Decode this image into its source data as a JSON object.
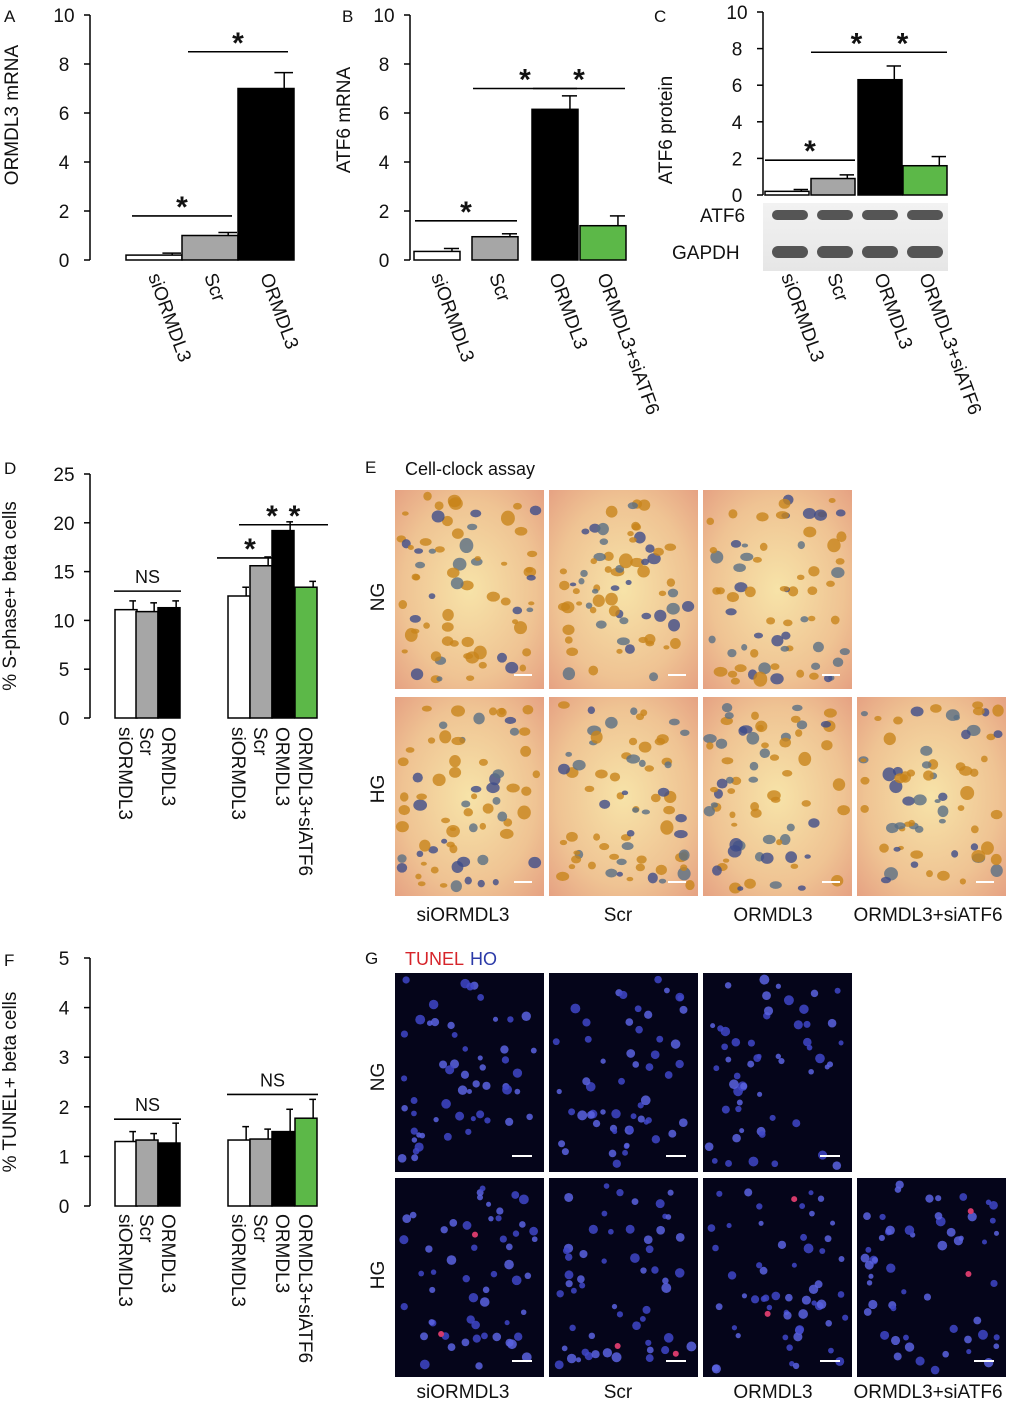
{
  "colors": {
    "white": "#ffffff",
    "gray": "#a6a6a6",
    "black": "#000000",
    "green": "#5cb848"
  },
  "chart_data": [
    {
      "id": "A",
      "type": "bar",
      "letter": "A",
      "ylabel": "ORMDL3 mRNA",
      "ylim": [
        0,
        10
      ],
      "yticks": [
        "0",
        "2",
        "4",
        "6",
        "8",
        "10"
      ],
      "categories": [
        "siORMDL3",
        "Scr",
        "ORMDL3"
      ],
      "values": [
        0.2,
        1.0,
        7.0
      ],
      "errors": [
        0.08,
        0.12,
        0.65
      ],
      "fills": [
        "white",
        "gray",
        "black"
      ],
      "annotations": [
        {
          "type": "star",
          "text": "*",
          "from": 0,
          "to": 1,
          "y": 1.8
        },
        {
          "type": "star",
          "text": "*",
          "from": 1,
          "to": 2,
          "y": 8.5
        }
      ]
    },
    {
      "id": "B",
      "type": "bar",
      "letter": "B",
      "ylabel": "ATF6 mRNA",
      "ylim": [
        0,
        10
      ],
      "yticks": [
        "0",
        "2",
        "4",
        "6",
        "8",
        "10"
      ],
      "categories": [
        "siORMDL3",
        "Scr",
        "ORMDL3",
        "ORMDL3+siATF6"
      ],
      "values": [
        0.35,
        0.95,
        6.15,
        1.4
      ],
      "errors": [
        0.12,
        0.12,
        0.55,
        0.4
      ],
      "fills": [
        "white",
        "gray",
        "black",
        "green"
      ],
      "annotations": [
        {
          "type": "star",
          "text": "*",
          "from": 0,
          "to": 1,
          "y": 1.6
        },
        {
          "type": "star",
          "text": "*",
          "from": 1,
          "to": 2,
          "y": 7.0
        },
        {
          "type": "star",
          "text": "*",
          "from": 2,
          "to": 3,
          "y": 7.0
        }
      ]
    },
    {
      "id": "C",
      "type": "bar",
      "letter": "C",
      "ylabel": "ATF6 protein",
      "ylim": [
        0,
        10
      ],
      "yticks": [
        "0",
        "2",
        "4",
        "6",
        "8",
        "10"
      ],
      "categories": [
        "siORMDL3",
        "Scr",
        "ORMDL3",
        "ORMDL3+siATF6"
      ],
      "values": [
        0.2,
        0.9,
        6.3,
        1.6
      ],
      "errors": [
        0.1,
        0.2,
        0.75,
        0.5
      ],
      "fills": [
        "white",
        "gray",
        "black",
        "green"
      ],
      "annotations": [
        {
          "type": "star",
          "text": "*",
          "from": 0,
          "to": 1,
          "y": 1.9
        },
        {
          "type": "star",
          "text": "*",
          "from": 1,
          "to": 2,
          "y": 7.8
        },
        {
          "type": "star",
          "text": "*",
          "from": 2,
          "to": 3,
          "y": 7.8
        }
      ],
      "blot_labels": [
        "ATF6",
        "GAPDH"
      ]
    },
    {
      "id": "D",
      "type": "bar",
      "letter": "D",
      "ylabel": "% S-phase+ beta cells",
      "ylim": [
        0,
        25
      ],
      "yticks": [
        "0",
        "5",
        "10",
        "15",
        "20",
        "25"
      ],
      "groups": [
        {
          "categories": [
            "siORMDL3",
            "Scr",
            "ORMDL3"
          ],
          "values": [
            11.1,
            10.9,
            11.3
          ],
          "errors": [
            0.9,
            0.9,
            0.7
          ],
          "fills": [
            "white",
            "gray",
            "black"
          ]
        },
        {
          "categories": [
            "siORMDL3",
            "Scr",
            "ORMDL3",
            "ORMDL3+siATF6"
          ],
          "values": [
            12.5,
            15.6,
            19.2,
            13.4
          ],
          "errors": [
            0.9,
            0.9,
            0.9,
            0.6
          ],
          "fills": [
            "white",
            "gray",
            "black",
            "green"
          ]
        }
      ],
      "annotations": [
        {
          "type": "ns",
          "text": "NS",
          "group": 0,
          "from": 0,
          "to": 2,
          "y": 13.0
        },
        {
          "type": "star",
          "text": "*",
          "group": 1,
          "from": 0,
          "to": 1,
          "y": 16.4
        },
        {
          "type": "star",
          "text": "*",
          "group": 1,
          "from": 1,
          "to": 2,
          "y": 19.8
        },
        {
          "type": "star",
          "text": "*",
          "group": 1,
          "from": 2,
          "to": 3,
          "y": 19.8
        }
      ]
    },
    {
      "id": "F",
      "type": "bar",
      "letter": "F",
      "ylabel": "% TUNEL+ beta cells",
      "ylim": [
        0,
        5
      ],
      "yticks": [
        "0",
        "1",
        "2",
        "3",
        "4",
        "5"
      ],
      "groups": [
        {
          "categories": [
            "siORMDL3",
            "Scr",
            "ORMDL3"
          ],
          "values": [
            1.3,
            1.33,
            1.27
          ],
          "errors": [
            0.2,
            0.13,
            0.4
          ],
          "fills": [
            "white",
            "gray",
            "black"
          ]
        },
        {
          "categories": [
            "siORMDL3",
            "Scr",
            "ORMDL3",
            "ORMDL3+siATF6"
          ],
          "values": [
            1.33,
            1.35,
            1.5,
            1.77
          ],
          "errors": [
            0.27,
            0.2,
            0.45,
            0.38
          ],
          "fills": [
            "white",
            "gray",
            "black",
            "green"
          ]
        }
      ],
      "annotations": [
        {
          "type": "ns",
          "text": "NS",
          "group": 0,
          "from": 0,
          "to": 2,
          "y": 1.75
        },
        {
          "type": "ns",
          "text": "NS",
          "group": 1,
          "from": 0,
          "to": 3,
          "y": 2.25
        }
      ]
    }
  ],
  "panels": {
    "E": {
      "letter": "E",
      "title": "Cell-clock assay",
      "rows": [
        "NG",
        "HG"
      ],
      "columns": [
        "siORMDL3",
        "Scr",
        "ORMDL3",
        "ORMDL3+siATF6"
      ]
    },
    "G": {
      "letter": "G",
      "title_red": "TUNEL",
      "title_blue": "HO",
      "rows": [
        "NG",
        "HG"
      ],
      "columns": [
        "siORMDL3",
        "Scr",
        "ORMDL3",
        "ORMDL3+siATF6"
      ]
    }
  }
}
